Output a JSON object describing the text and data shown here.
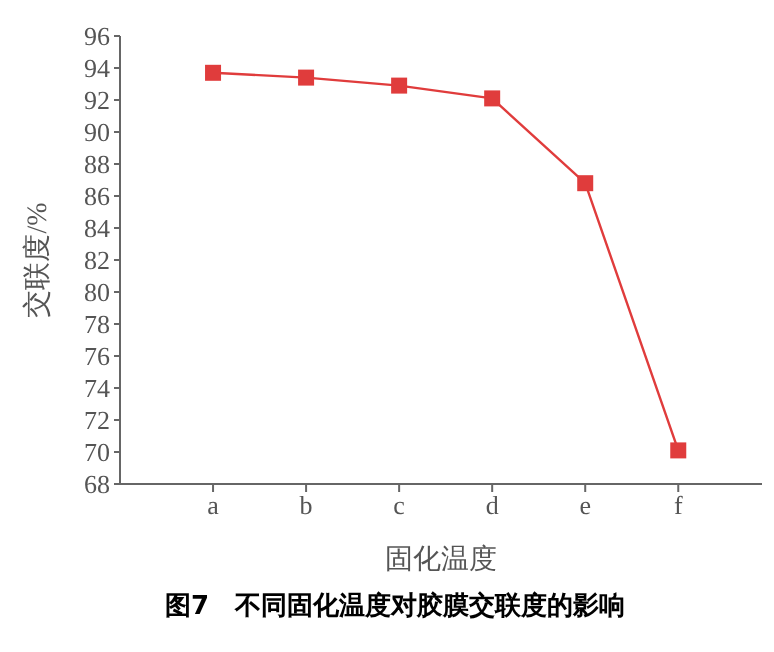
{
  "chart_data": {
    "type": "line",
    "title": "图7　不同固化温度对胶膜交联度的影响",
    "xlabel": "固化温度",
    "ylabel": "交联度/%",
    "categories": [
      "a",
      "b",
      "c",
      "d",
      "e",
      "f"
    ],
    "series": [
      {
        "color": "#e03c3c",
        "values": [
          93.7,
          93.4,
          92.9,
          92.1,
          86.8,
          70.1
        ]
      }
    ],
    "ylim": [
      68,
      96
    ],
    "yticks": [
      68,
      70,
      72,
      74,
      76,
      78,
      80,
      82,
      84,
      86,
      88,
      90,
      92,
      94,
      96
    ],
    "grid": false,
    "legend": false,
    "marker": "square",
    "line_style": "solid"
  }
}
